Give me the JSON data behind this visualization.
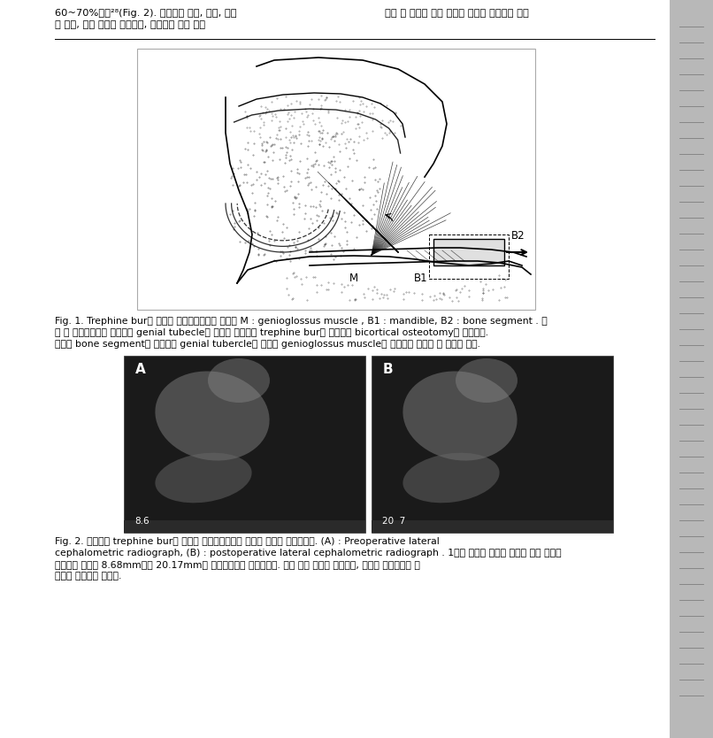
{
  "background_color": "#d4d4d4",
  "page_bg": "#ffffff",
  "fig_width": 8.06,
  "fig_height": 8.34,
  "top_text_left1": "60~70%이다²⁸(Fig. 2). 합병증은 감염, 혈종, 이설",
  "top_text_left2": "근 손상, 하악 치아의 감각이상, 하악골절 등이 있을",
  "top_text_right": "수면 중 반복적 기도 저항의 증가로 초래되는 폐쇄",
  "fig1_cap1": "Fig. 1. Trephine bur를 이용한 이설근전진술의 모식도 M : genioglossus muscle , B1 : mandible, B2 : bone segment . 수",
  "fig1_cap2": "술 전 방사선사진을 이용하여 genial tubecle의 위치를 확인하고 trephine bur를 이용하여 bicortical osteotomy를 시행한다.",
  "fig1_cap3": "절골된 bone segment를 전진시켜 genial tubercle에 부착된 genioglossus muscle이 전방으로 이동될 수 있도록 한다.",
  "fig2_cap1": "Fig. 2. 본원에서 trephine bur를 이용한 이설근전진술을 시행한 환자의 방사선사진. (A) : Preoperative lateral",
  "fig2_cap2": "cephalometric radiograph, (B) : postoperative lateral cephalometric radiograph . 1시간 정도의 간단한 수술을 통해 기도의",
  "fig2_cap3": "전후방적 직경이 8.68mm에서 20.17mm로 증가하였음을 확인하였다. 술후 안모 변화는 없었으며, 특별한 합병증이나 후",
  "fig2_cap4": "유증도 관찰되지 않았다."
}
